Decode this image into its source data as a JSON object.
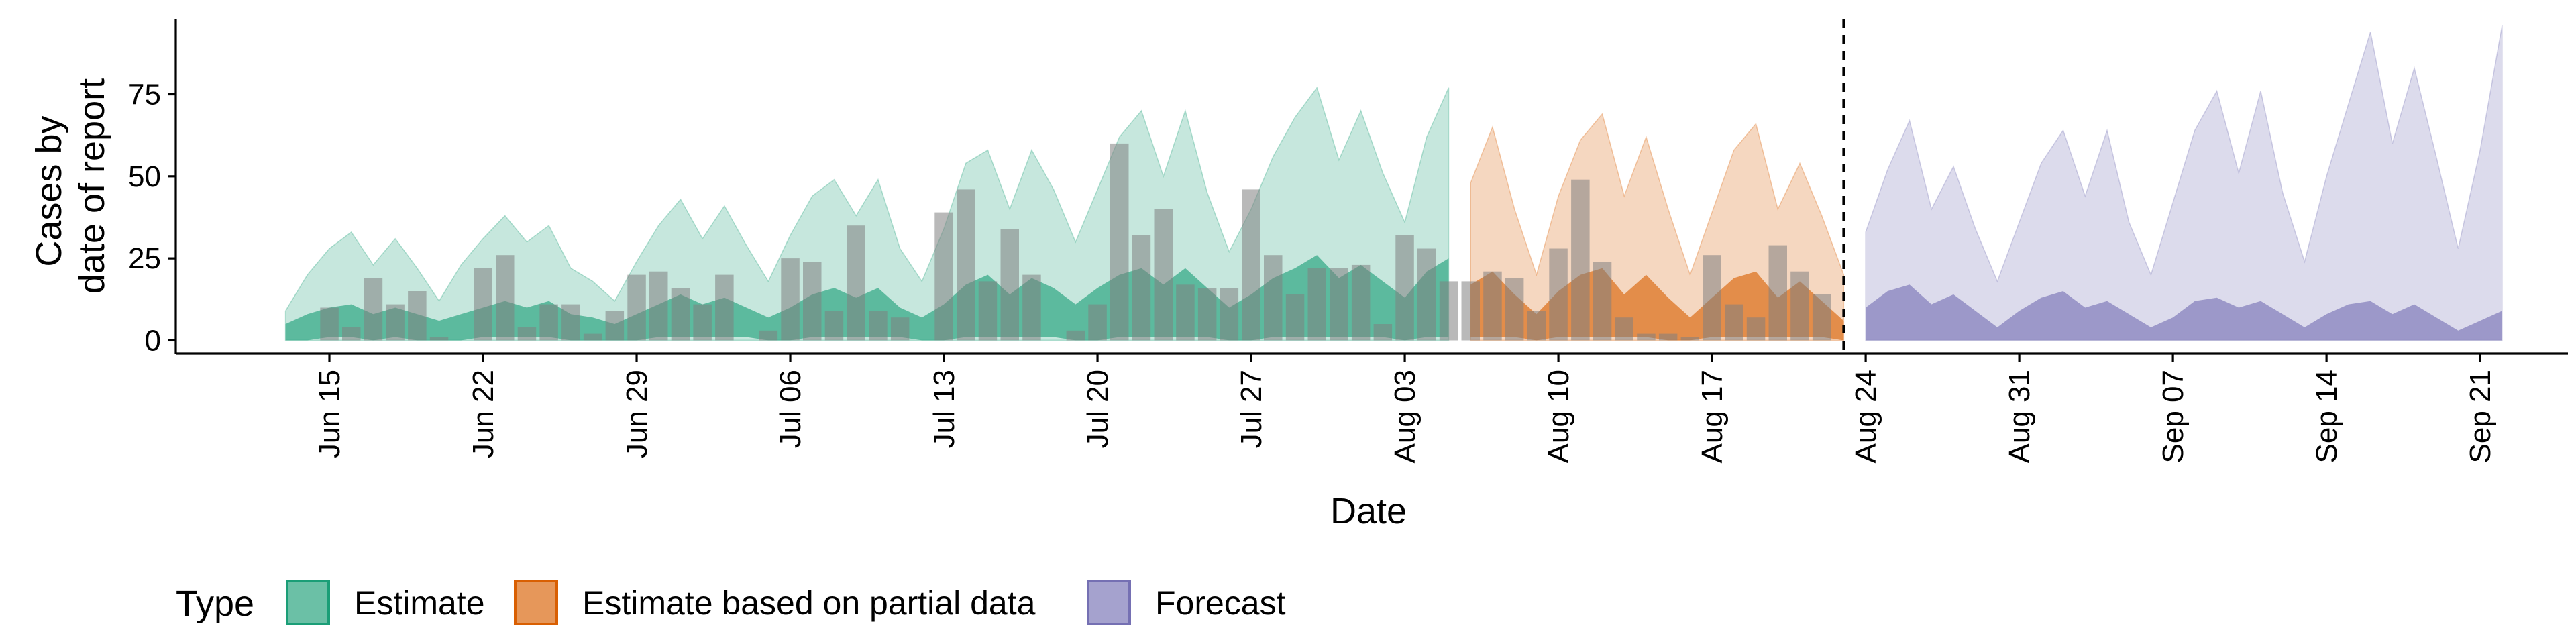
{
  "chart_data": {
    "type": "area",
    "xlabel": "Date",
    "ylabel_lines": [
      "Cases by",
      "date of report"
    ],
    "ylim": [
      -4,
      98
    ],
    "y_ticks": [
      0,
      25,
      50,
      75
    ],
    "x_ticks": [
      "2020-06-15",
      "2020-06-22",
      "2020-06-29",
      "2020-07-06",
      "2020-07-13",
      "2020-07-20",
      "2020-07-27",
      "2020-08-03",
      "2020-08-10",
      "2020-08-17",
      "2020-08-24",
      "2020-08-31",
      "2020-09-07",
      "2020-09-14",
      "2020-09-21"
    ],
    "x_tick_labels": [
      "Jun 15",
      "Jun 22",
      "Jun 29",
      "Jul 06",
      "Jul 13",
      "Jul 20",
      "Jul 27",
      "Aug 03",
      "Aug 10",
      "Aug 17",
      "Aug 24",
      "Aug 31",
      "Sep 07",
      "Sep 14",
      "Sep 21"
    ],
    "xlim": [
      "2020-06-08",
      "2020-09-25"
    ],
    "vline_date": "2020-08-23",
    "legend": {
      "title": "Type",
      "position": "bottom",
      "items": [
        {
          "label": "Estimate",
          "color": "#1B9E77"
        },
        {
          "label": "Estimate based on partial data",
          "color": "#D95F02"
        },
        {
          "label": "Forecast",
          "color": "#7570B3"
        }
      ]
    },
    "series": [
      {
        "type_label": "Estimate",
        "color": "#1B9E77",
        "dates": [
          "2020-06-13",
          "2020-06-14",
          "2020-06-15",
          "2020-06-16",
          "2020-06-17",
          "2020-06-18",
          "2020-06-19",
          "2020-06-20",
          "2020-06-21",
          "2020-06-22",
          "2020-06-23",
          "2020-06-24",
          "2020-06-25",
          "2020-06-26",
          "2020-06-27",
          "2020-06-28",
          "2020-06-29",
          "2020-06-30",
          "2020-07-01",
          "2020-07-02",
          "2020-07-03",
          "2020-07-04",
          "2020-07-05",
          "2020-07-06",
          "2020-07-07",
          "2020-07-08",
          "2020-07-09",
          "2020-07-10",
          "2020-07-11",
          "2020-07-12",
          "2020-07-13",
          "2020-07-14",
          "2020-07-15",
          "2020-07-16",
          "2020-07-17",
          "2020-07-18",
          "2020-07-19",
          "2020-07-20",
          "2020-07-21",
          "2020-07-22",
          "2020-07-23",
          "2020-07-24",
          "2020-07-25",
          "2020-07-26",
          "2020-07-27",
          "2020-07-28",
          "2020-07-29",
          "2020-07-30",
          "2020-07-31",
          "2020-08-01",
          "2020-08-02",
          "2020-08-03",
          "2020-08-04",
          "2020-08-05"
        ],
        "upper_outer": [
          9,
          20,
          28,
          33,
          23,
          31,
          22,
          12,
          23,
          31,
          38,
          30,
          35,
          22,
          18,
          12,
          24,
          35,
          43,
          31,
          41,
          29,
          18,
          32,
          44,
          49,
          38,
          49,
          28,
          18,
          34,
          54,
          58,
          40,
          58,
          46,
          30,
          46,
          62,
          70,
          50,
          70,
          45,
          27,
          40,
          56,
          68,
          77,
          55,
          70,
          51,
          36,
          62,
          77
        ],
        "upper_inner": [
          5,
          8,
          10,
          11,
          8,
          10,
          8,
          6,
          8,
          10,
          12,
          10,
          12,
          8,
          7,
          5,
          8,
          11,
          14,
          11,
          13,
          10,
          7,
          10,
          14,
          16,
          13,
          16,
          10,
          7,
          11,
          17,
          20,
          14,
          19,
          16,
          11,
          16,
          20,
          22,
          17,
          22,
          16,
          10,
          14,
          19,
          22,
          26,
          19,
          23,
          18,
          13,
          21,
          25
        ],
        "lower_inner": [
          0,
          0,
          1,
          1,
          0,
          1,
          0,
          0,
          0,
          1,
          1,
          1,
          1,
          0,
          0,
          0,
          0,
          1,
          1,
          1,
          1,
          1,
          0,
          0,
          1,
          1,
          1,
          1,
          1,
          0,
          0,
          1,
          1,
          1,
          1,
          1,
          0,
          0,
          1,
          1,
          1,
          1,
          1,
          0,
          0,
          1,
          1,
          1,
          1,
          1,
          1,
          0,
          1,
          1
        ],
        "reported": [
          null,
          null,
          10,
          4,
          19,
          11,
          15,
          1,
          null,
          22,
          26,
          4,
          11,
          11,
          2,
          9,
          20,
          21,
          16,
          11,
          20,
          null,
          3,
          25,
          24,
          9,
          35,
          9,
          7,
          null,
          39,
          46,
          18,
          34,
          20,
          null,
          3,
          11,
          60,
          32,
          40,
          17,
          16,
          16,
          46,
          26,
          14,
          22,
          22,
          23,
          5,
          32,
          28,
          18
        ]
      },
      {
        "type_label": "Estimate based on partial data",
        "color": "#D95F02",
        "dates": [
          "2020-08-06",
          "2020-08-07",
          "2020-08-08",
          "2020-08-09",
          "2020-08-10",
          "2020-08-11",
          "2020-08-12",
          "2020-08-13",
          "2020-08-14",
          "2020-08-15",
          "2020-08-16",
          "2020-08-17",
          "2020-08-18",
          "2020-08-19",
          "2020-08-20",
          "2020-08-21",
          "2020-08-22",
          "2020-08-23"
        ],
        "upper_outer": [
          48,
          65,
          40,
          20,
          44,
          61,
          69,
          44,
          62,
          40,
          20,
          39,
          58,
          66,
          40,
          54,
          38,
          20
        ],
        "upper_inner": [
          17,
          21,
          14,
          8,
          15,
          20,
          22,
          14,
          20,
          13,
          7,
          13,
          19,
          21,
          13,
          18,
          12,
          6
        ],
        "lower_inner": [
          1,
          1,
          1,
          0,
          1,
          1,
          1,
          1,
          1,
          0,
          0,
          1,
          1,
          1,
          1,
          1,
          1,
          0
        ],
        "reported": [
          18,
          21,
          19,
          9,
          28,
          49,
          24,
          7,
          2,
          2,
          1,
          26,
          11,
          7,
          29,
          21,
          14,
          null
        ]
      },
      {
        "type_label": "Forecast",
        "color": "#7570B3",
        "dates": [
          "2020-08-24",
          "2020-08-25",
          "2020-08-26",
          "2020-08-27",
          "2020-08-28",
          "2020-08-29",
          "2020-08-30",
          "2020-08-31",
          "2020-09-01",
          "2020-09-02",
          "2020-09-03",
          "2020-09-04",
          "2020-09-05",
          "2020-09-06",
          "2020-09-07",
          "2020-09-08",
          "2020-09-09",
          "2020-09-10",
          "2020-09-11",
          "2020-09-12",
          "2020-09-13",
          "2020-09-14",
          "2020-09-15",
          "2020-09-16",
          "2020-09-17",
          "2020-09-18",
          "2020-09-19",
          "2020-09-20",
          "2020-09-21",
          "2020-09-22"
        ],
        "upper_outer": [
          33,
          52,
          67,
          40,
          53,
          34,
          18,
          36,
          54,
          64,
          44,
          64,
          36,
          20,
          42,
          64,
          76,
          51,
          76,
          45,
          24,
          50,
          72,
          94,
          60,
          83,
          56,
          28,
          58,
          96
        ],
        "upper_inner": [
          10,
          15,
          17,
          11,
          14,
          9,
          4,
          9,
          13,
          15,
          10,
          12,
          8,
          4,
          7,
          12,
          13,
          10,
          12,
          8,
          4,
          8,
          11,
          12,
          8,
          11,
          7,
          3,
          6,
          9
        ],
        "lower_inner": [
          0,
          0,
          0,
          0,
          0,
          0,
          0,
          0,
          0,
          0,
          0,
          0,
          0,
          0,
          0,
          0,
          0,
          0,
          0,
          0,
          0,
          0,
          0,
          0,
          0,
          0,
          0,
          0,
          0,
          0
        ],
        "reported": []
      }
    ]
  }
}
